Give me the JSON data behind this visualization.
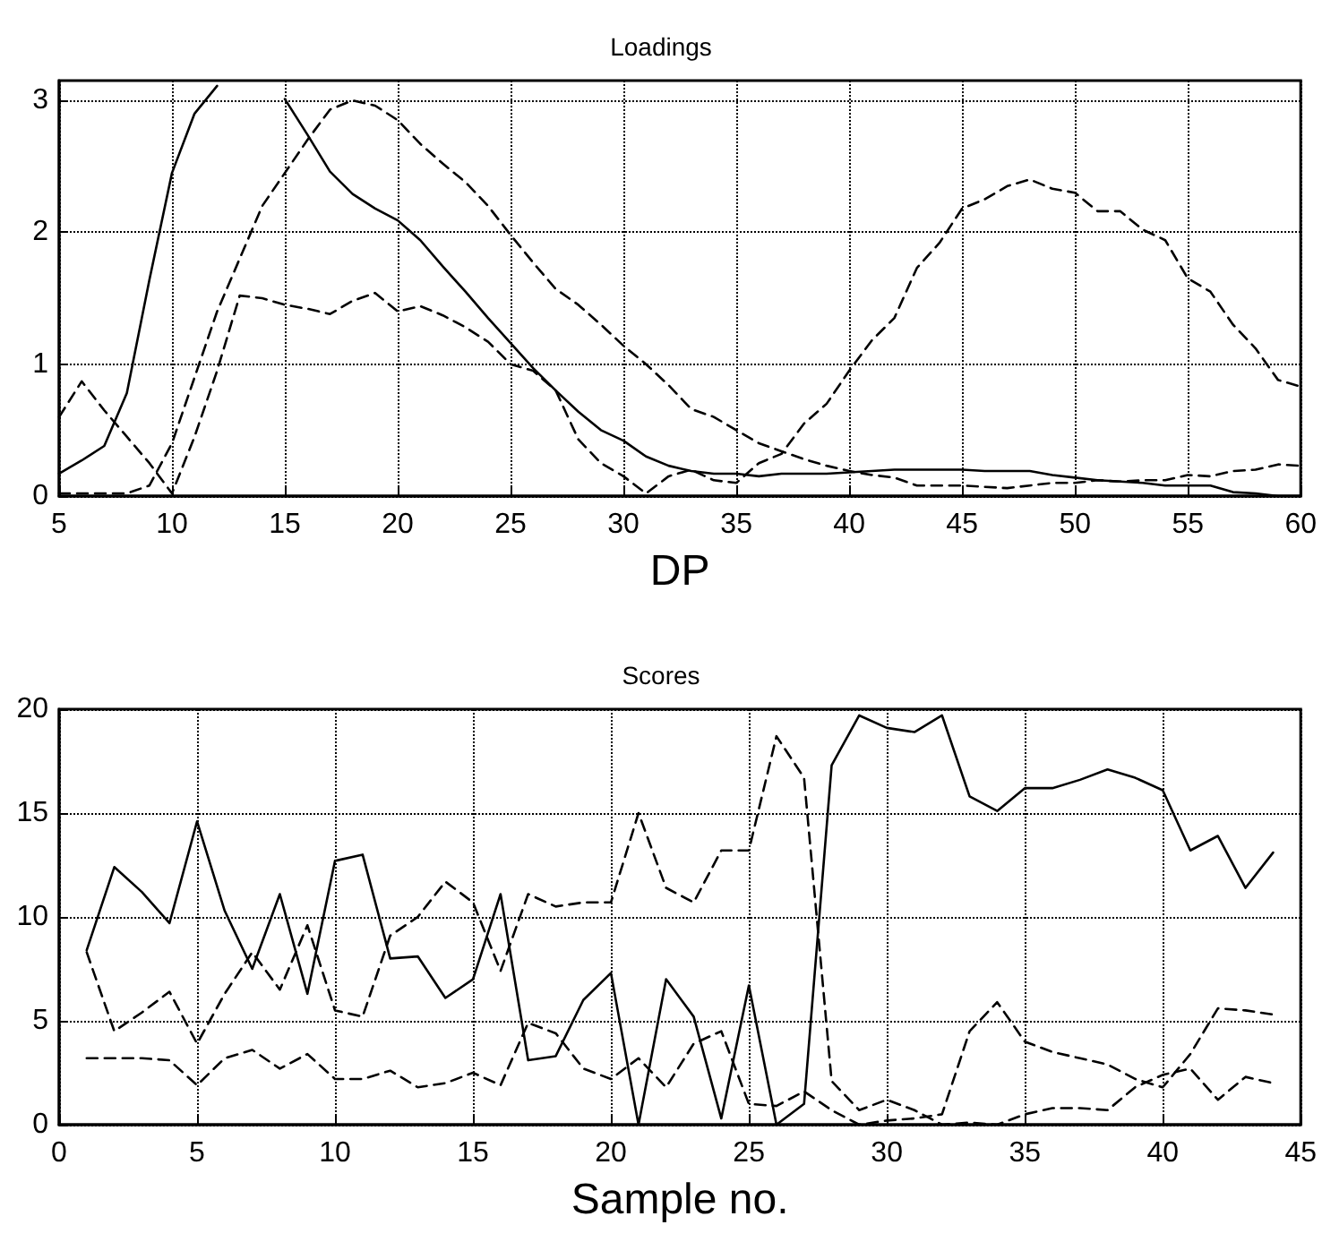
{
  "chart_data": [
    {
      "type": "line",
      "title": "Loadings",
      "xlabel": "DP",
      "x": [
        5,
        6,
        7,
        8,
        9,
        10,
        11,
        12,
        13,
        14,
        15,
        16,
        17,
        18,
        19,
        20,
        21,
        22,
        23,
        24,
        25,
        26,
        27,
        28,
        29,
        30,
        31,
        32,
        33,
        34,
        35,
        36,
        37,
        38,
        39,
        40,
        41,
        42,
        43,
        44,
        45,
        46,
        47,
        48,
        49,
        50,
        51,
        52,
        53,
        54,
        55,
        56,
        57,
        58,
        59,
        60
      ],
      "xlim": [
        5,
        60
      ],
      "xticks": [
        5,
        10,
        15,
        20,
        25,
        30,
        35,
        40,
        45,
        50,
        55,
        60
      ],
      "ylim": [
        0,
        3.15
      ],
      "yticks": [
        0,
        1,
        2,
        3
      ],
      "grid": true,
      "marker": "none",
      "series": [
        {
          "color": "#000000",
          "line_style": "solid",
          "values": [
            0.17,
            0.27,
            0.38,
            0.78,
            1.64,
            2.45,
            2.9,
            3.11,
            null,
            null,
            3.01,
            2.74,
            2.46,
            2.29,
            2.18,
            2.09,
            1.94,
            1.74,
            1.55,
            1.35,
            1.16,
            0.97,
            0.8,
            0.64,
            0.5,
            0.42,
            0.3,
            0.23,
            0.19,
            0.17,
            0.17,
            0.15,
            0.17,
            0.17,
            0.17,
            0.18,
            0.19,
            0.2,
            0.2,
            0.2,
            0.2,
            0.19,
            0.19,
            0.19,
            0.16,
            0.14,
            0.12,
            0.11,
            0.1,
            0.08,
            0.08,
            0.08,
            0.03,
            0.02,
            0,
            0
          ]
        },
        {
          "color": "#000000",
          "line_style": "dashed",
          "values": [
            0.02,
            0.02,
            0.02,
            0.02,
            0.08,
            0.4,
            0.9,
            1.4,
            1.8,
            2.2,
            2.45,
            2.7,
            2.93,
            3.0,
            2.96,
            2.85,
            2.67,
            2.52,
            2.38,
            2.2,
            1.98,
            1.77,
            1.57,
            1.45,
            1.3,
            1.14,
            1.0,
            0.84,
            0.66,
            0.6,
            0.5,
            0.4,
            0.34,
            0.28,
            0.23,
            0.19,
            0.16,
            0.14,
            0.08,
            0.08,
            0.08,
            0.07,
            0.06,
            0.08,
            0.1,
            0.1,
            0.12,
            0.11,
            0.12,
            0.12,
            0.16,
            0.15,
            0.19,
            0.2,
            0.24,
            0.23
          ]
        },
        {
          "color": "#000000",
          "line_style": "dashed",
          "values": [
            0.6,
            0.87,
            0.65,
            0.45,
            0.25,
            0.02,
            0.45,
            0.95,
            1.52,
            1.5,
            1.45,
            1.42,
            1.38,
            1.48,
            1.54,
            1.4,
            1.44,
            1.37,
            1.28,
            1.17,
            1.0,
            0.95,
            0.8,
            0.43,
            0.25,
            0.15,
            0.02,
            0.15,
            0.2,
            0.12,
            0.1,
            0.25,
            0.32,
            0.55,
            0.7,
            0.95,
            1.18,
            1.35,
            1.73,
            1.92,
            2.18,
            2.25,
            2.35,
            2.4,
            2.33,
            2.3,
            2.16,
            2.16,
            2.02,
            1.94,
            1.65,
            1.55,
            1.3,
            1.12,
            0.88,
            0.83
          ]
        }
      ]
    },
    {
      "type": "line",
      "title": "Scores",
      "xlabel": "Sample no.",
      "x": [
        1,
        2,
        3,
        4,
        5,
        6,
        7,
        8,
        9,
        10,
        11,
        12,
        13,
        14,
        15,
        16,
        17,
        18,
        19,
        20,
        21,
        22,
        23,
        24,
        25,
        26,
        27,
        28,
        29,
        30,
        31,
        32,
        33,
        34,
        35,
        36,
        37,
        38,
        39,
        40,
        41,
        42,
        43,
        44
      ],
      "xlim": [
        0,
        45
      ],
      "xticks": [
        0,
        5,
        10,
        15,
        20,
        25,
        30,
        35,
        40,
        45
      ],
      "ylim": [
        0,
        20
      ],
      "yticks": [
        0,
        5,
        10,
        15,
        20
      ],
      "grid": true,
      "marker": "none",
      "series": [
        {
          "color": "#000000",
          "line_style": "solid",
          "values": [
            8.4,
            12.4,
            11.2,
            9.7,
            14.6,
            10.3,
            7.5,
            11.1,
            6.3,
            12.7,
            13.0,
            8.0,
            8.1,
            6.1,
            7.0,
            11.1,
            3.1,
            3.3,
            6.0,
            7.3,
            0,
            7.0,
            5.2,
            0.3,
            6.7,
            0,
            1.0,
            17.3,
            19.7,
            19.1,
            18.9,
            19.7,
            15.8,
            15.1,
            16.2,
            16.2,
            16.6,
            17.1,
            16.7,
            16.1,
            13.2,
            13.9,
            11.4,
            13.1
          ]
        },
        {
          "color": "#000000",
          "line_style": "dashed",
          "values": [
            8.3,
            4.5,
            5.4,
            6.4,
            3.9,
            6.3,
            8.3,
            6.5,
            9.6,
            5.5,
            5.2,
            9.1,
            10.0,
            11.7,
            10.7,
            7.4,
            11.1,
            10.5,
            10.7,
            10.7,
            15.0,
            11.4,
            10.7,
            13.2,
            13.2,
            18.7,
            16.7,
            2.1,
            0.7,
            1.2,
            0.7,
            0,
            0.1,
            0,
            0.5,
            0.8,
            0.8,
            0.7,
            1.8,
            2.4,
            2.7,
            1.2,
            2.3,
            2.0
          ]
        },
        {
          "color": "#000000",
          "line_style": "dashed",
          "values": [
            3.2,
            3.2,
            3.2,
            3.1,
            1.9,
            3.2,
            3.6,
            2.7,
            3.4,
            2.2,
            2.2,
            2.6,
            1.8,
            2.0,
            2.5,
            1.9,
            4.9,
            4.4,
            2.7,
            2.2,
            3.2,
            1.8,
            3.9,
            4.5,
            1.0,
            0.9,
            1.6,
            0.7,
            0,
            0.2,
            0.3,
            0.5,
            4.5,
            5.9,
            4.0,
            3.5,
            3.2,
            2.9,
            2.2,
            1.8,
            3.4,
            5.6,
            5.5,
            5.3
          ]
        }
      ]
    }
  ]
}
